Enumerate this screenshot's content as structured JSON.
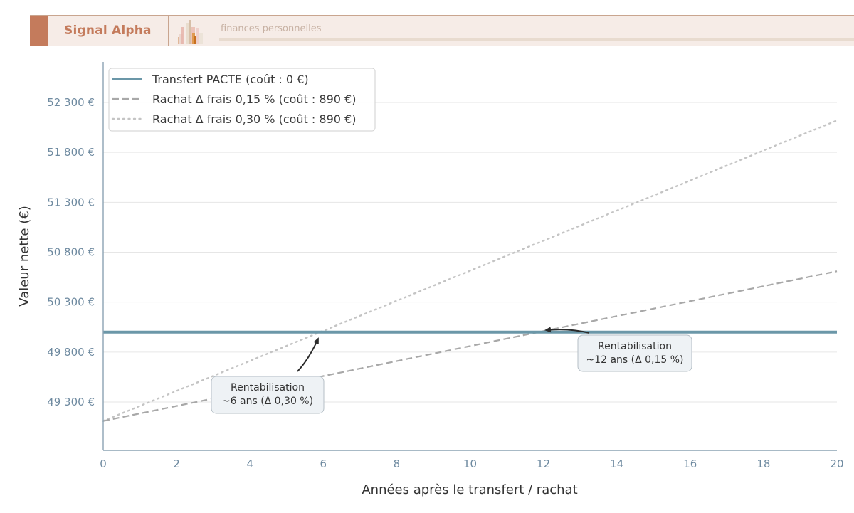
{
  "banner": {
    "brand": "Signal Alpha",
    "tagline": "finances personnelles",
    "logo_icon": "bar-chart-logo-icon"
  },
  "colors": {
    "accent": "#c47b5c",
    "banner_bg": "#f6ece7",
    "pacte": "#6b97a8",
    "rachat_015": "#a8a8a8",
    "rachat_030": "#c4c4c4",
    "axis": "#8ba3b3",
    "tick": "#6e8aa0",
    "grid": "#e6e6e6",
    "annotation_bg": "#eef2f5"
  },
  "chart_data": {
    "type": "line",
    "title": "",
    "xlabel": "Années après le transfert / rachat",
    "ylabel": "Valeur nette (€)",
    "xlim": [
      0,
      20
    ],
    "ylim": [
      48810,
      52710
    ],
    "grid": true,
    "grid_axis": "y",
    "legend_position": "upper left",
    "x_ticks": [
      "0",
      "2",
      "4",
      "6",
      "8",
      "10",
      "12",
      "14",
      "16",
      "18",
      "20"
    ],
    "y_ticks": [
      "49 300 €",
      "49 800 €",
      "50 300 €",
      "50 800 €",
      "51 300 €",
      "51 800 €",
      "52 300 €"
    ],
    "y_tick_values": [
      49300,
      49800,
      50300,
      50800,
      51300,
      51800,
      52300
    ],
    "x": [
      0,
      20
    ],
    "series": [
      {
        "name": "Transfert PACTE (coût : 0 €)",
        "style": "solid",
        "values": [
          50000,
          50000
        ]
      },
      {
        "name": "Rachat Δ frais 0,15 % (coût : 890 €)",
        "style": "dashed",
        "values": [
          49110,
          50610
        ]
      },
      {
        "name": "Rachat Δ frais 0,30 % (coût : 890 €)",
        "style": "dotted",
        "values": [
          49110,
          52120
        ]
      }
    ],
    "annotations": [
      {
        "line1": "Rentabilisation",
        "line2": "~6 ans (Δ 0,30 %)",
        "x": 6,
        "y": 50000
      },
      {
        "line1": "Rentabilisation",
        "line2": "~12 ans (Δ 0,15 %)",
        "x": 12,
        "y": 50000
      }
    ]
  }
}
